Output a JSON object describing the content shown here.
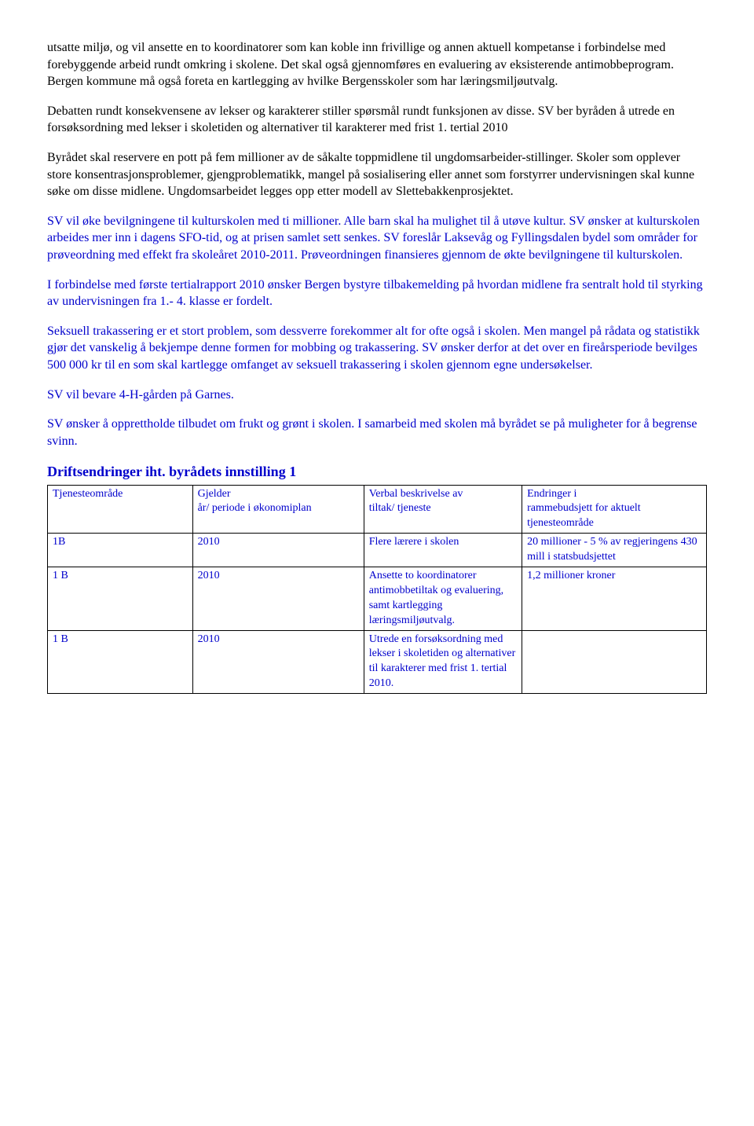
{
  "paragraphs": {
    "p1": "utsatte miljø, og vil ansette en to koordinatorer som kan koble inn frivillige og annen aktuell kompetanse i forbindelse med forebyggende arbeid rundt omkring i skolene. Det skal også gjennomføres en evaluering av eksisterende antimobbeprogram.",
    "p1b": "Bergen kommune må også foreta en kartlegging av hvilke Bergensskoler som har læringsmiljøutvalg.",
    "p2": "Debatten rundt konsekvensene av lekser og karakterer stiller spørsmål rundt funksjonen av disse. SV ber byråden å utrede en forsøksordning med lekser i skoletiden og alternativer til karakterer med frist 1. tertial 2010",
    "p3": "Byrådet skal reservere en pott på fem millioner av de såkalte toppmidlene til ungdomsarbeider-stillinger. Skoler som opplever store konsentrasjonsproblemer, gjengproblematikk, mangel på sosialisering eller annet som forstyrrer undervisningen skal kunne søke om disse midlene. Ungdomsarbeidet legges opp etter modell av Slettebakkenprosjektet.",
    "p4a": "SV vil øke bevilgningene til kulturskolen med ti millioner. Alle barn skal ha mulighet til å utøve kultur. SV ønsker at kulturskolen arbeides mer inn i dagens SFO-tid, og at prisen samlet sett senkes. SV foreslår Laksevåg og Fyllingsdalen bydel som områder for prøveordning med effekt fra skoleåret 2010-2011. Prøveordningen finansieres gjennom de økte bevilgningene til kulturskolen.",
    "p5": "I forbindelse med første tertialrapport 2010 ønsker Bergen bystyre tilbakemelding på hvordan midlene fra sentralt hold til styrking av undervisningen fra 1.- 4. klasse er fordelt.",
    "p6a": "Seksuell trakassering er et stort problem, som dessverre forekommer alt for ofte også i skolen. Men mangel på rådata og statistikk gjør det vanskelig å bekjempe denne formen for mobbing og trakassering. SV ønsker derfor at det over en fireårsperiode bevilges 500 000 kr til en som skal kartlegge omfanget av seksuell trakassering i skolen gjennom egne undersøkelser.",
    "p7": "SV vil bevare 4-H-gården på Garnes.",
    "p8": "SV ønsker å opprettholde tilbudet om frukt og grønt i skolen. I samarbeid med skolen må byrådet se på muligheter for å begrense svinn."
  },
  "table": {
    "heading": "Driftsendringer iht. byrådets innstilling 1",
    "header": {
      "c1": "Tjenesteområde",
      "c2a": "Gjelder",
      "c2b": "år/ periode i økonomiplan",
      "c3a": "Verbal beskrivelse av",
      "c3b": "tiltak/ tjeneste",
      "c4a": "Endringer i",
      "c4b": "rammebudsjett for aktuelt tjenesteområde"
    },
    "rows": [
      {
        "c1": "1B",
        "c2": "2010",
        "c3": "Flere lærere i skolen",
        "c4": "20 millioner - 5 % av regjeringens 430 mill i statsbudsjettet"
      },
      {
        "c1": "1 B",
        "c2": "2010",
        "c3": "Ansette to koordinatorer antimobbetiltak og evaluering, samt kartlegging læringsmiljøutvalg.",
        "c4": "1,2 millioner kroner"
      },
      {
        "c1": "1 B",
        "c2": "2010",
        "c3": "Utrede en forsøksordning med lekser i skoletiden og alternativer til karakterer med frist 1. tertial 2010.",
        "c4": ""
      }
    ]
  }
}
